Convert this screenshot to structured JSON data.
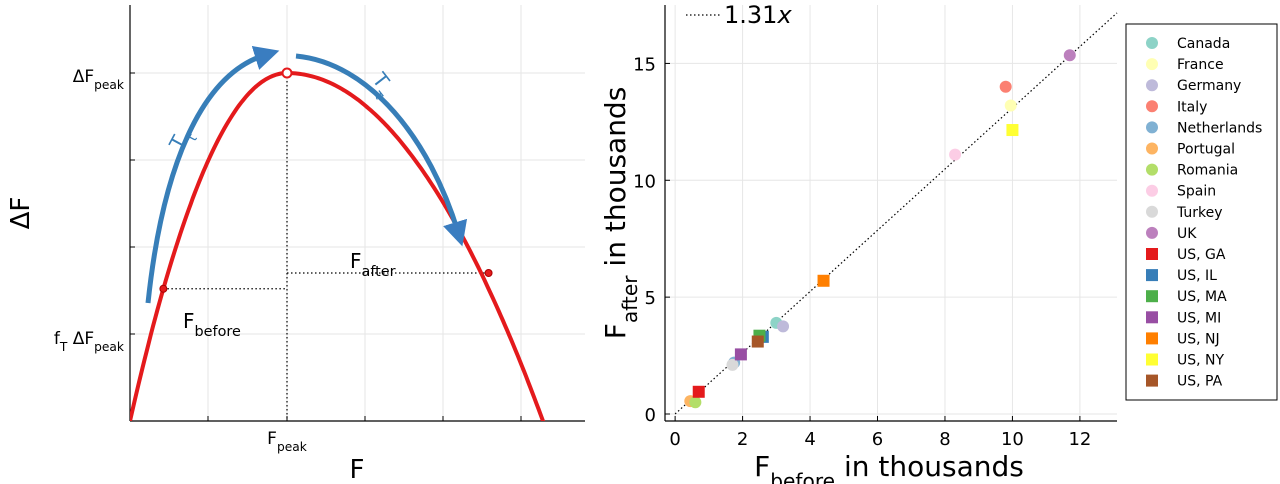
{
  "chart_data": [
    {
      "type": "line",
      "title": "",
      "xlabel": "F",
      "ylabel": "ΔF",
      "x_tick_labels": [
        {
          "base": "F",
          "sub": "peak"
        }
      ],
      "y_tick_labels": [
        {
          "pre": "",
          "presub": "",
          "base": "ΔF",
          "sub": "peak"
        },
        {
          "pre": "f",
          "presub": "T",
          "base": " ΔF",
          "sub": "peak"
        }
      ],
      "annotations": {
        "before": {
          "base": "F",
          "sub": "before"
        },
        "after": {
          "base": "F",
          "sub": "after"
        },
        "arrow_left": {
          "base": "T",
          "sub": "τ"
        },
        "arrow_right": {
          "base": "T",
          "sub": "τ"
        }
      },
      "curve": {
        "shape": "inverted-parabola",
        "color": "#e41a1c"
      },
      "arrow_color": "#377eb8",
      "f_t": 0.38
    },
    {
      "type": "scatter",
      "title": "",
      "xlabel": {
        "base": "F",
        "sub": "before",
        "rest": " in thousands"
      },
      "ylabel": {
        "base": "F",
        "sub": "after",
        "rest": " in thousands"
      },
      "xlim": [
        -0.3,
        13.1
      ],
      "ylim": [
        -0.3,
        17.5
      ],
      "xticks": [
        0,
        2,
        4,
        6,
        8,
        10,
        12
      ],
      "yticks": [
        0,
        5,
        10,
        15
      ],
      "grid": true,
      "fit_line": {
        "label_prefix": "1.31",
        "label_var": "x",
        "slope": 1.31
      },
      "legend_position": "right",
      "series": [
        {
          "name": "Canada",
          "marker": "circle",
          "color": "#8dd3c7",
          "points": [
            [
              3.0,
              3.9
            ]
          ]
        },
        {
          "name": "France",
          "marker": "circle",
          "color": "#ffffb3",
          "points": [
            [
              9.95,
              13.2
            ]
          ]
        },
        {
          "name": "Germany",
          "marker": "circle",
          "color": "#bebada",
          "points": [
            [
              3.2,
              3.75
            ]
          ]
        },
        {
          "name": "Italy",
          "marker": "circle",
          "color": "#fb8072",
          "points": [
            [
              9.8,
              14.0
            ]
          ]
        },
        {
          "name": "Netherlands",
          "marker": "circle",
          "color": "#80b1d3",
          "points": [
            [
              1.75,
              2.2
            ]
          ]
        },
        {
          "name": "Portugal",
          "marker": "circle",
          "color": "#fdb462",
          "points": [
            [
              0.45,
              0.55
            ]
          ]
        },
        {
          "name": "Romania",
          "marker": "circle",
          "color": "#b3de69",
          "points": [
            [
              0.6,
              0.5
            ]
          ]
        },
        {
          "name": "Spain",
          "marker": "circle",
          "color": "#fccde5",
          "points": [
            [
              8.3,
              11.1
            ]
          ]
        },
        {
          "name": "Turkey",
          "marker": "circle",
          "color": "#d9d9d9",
          "points": [
            [
              1.7,
              2.1
            ]
          ]
        },
        {
          "name": "UK",
          "marker": "circle",
          "color": "#bc80bd",
          "points": [
            [
              11.7,
              15.35
            ]
          ]
        },
        {
          "name": "US, GA",
          "marker": "square",
          "color": "#e41a1c",
          "points": [
            [
              0.7,
              0.95
            ]
          ]
        },
        {
          "name": "US, IL",
          "marker": "square",
          "color": "#377eb8",
          "points": [
            [
              2.6,
              3.3
            ]
          ]
        },
        {
          "name": "US, MA",
          "marker": "square",
          "color": "#4daf4a",
          "points": [
            [
              2.5,
              3.35
            ]
          ]
        },
        {
          "name": "US, MI",
          "marker": "square",
          "color": "#984ea3",
          "points": [
            [
              1.95,
              2.55
            ]
          ]
        },
        {
          "name": "US, NJ",
          "marker": "square",
          "color": "#ff7f00",
          "points": [
            [
              4.4,
              5.7
            ]
          ]
        },
        {
          "name": "US, NY",
          "marker": "square",
          "color": "#ffff33",
          "points": [
            [
              10.0,
              12.15
            ]
          ]
        },
        {
          "name": "US, PA",
          "marker": "square",
          "color": "#a65628",
          "points": [
            [
              2.45,
              3.1
            ]
          ]
        }
      ]
    }
  ]
}
